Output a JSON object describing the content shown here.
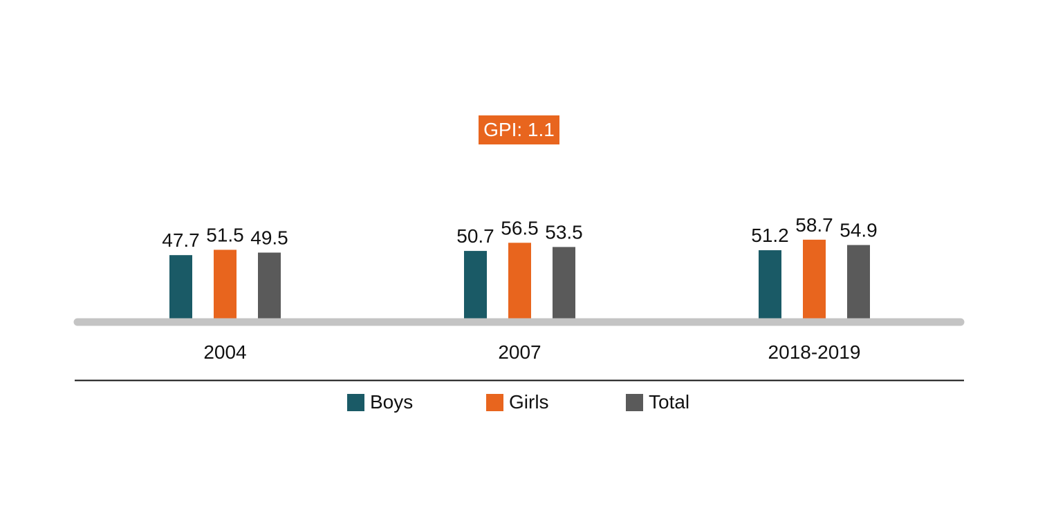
{
  "colors": {
    "boys": "#1a5a66",
    "girls": "#e8651e",
    "total": "#5a5a5a",
    "axis": "#c4c4c4",
    "divider": "#111111",
    "badge_bg": "#e8651e"
  },
  "annotation": {
    "gpi_text": "GPI: 1.1"
  },
  "legend": {
    "items": [
      {
        "label": "Boys",
        "color_key": "boys"
      },
      {
        "label": "Girls",
        "color_key": "girls"
      },
      {
        "label": "Total",
        "color_key": "total"
      }
    ]
  },
  "chart_data": {
    "type": "bar",
    "categories": [
      "2004",
      "2007",
      "2018-2019"
    ],
    "series": [
      {
        "name": "Boys",
        "values": [
          47.7,
          50.7,
          51.2
        ]
      },
      {
        "name": "Girls",
        "values": [
          51.5,
          56.5,
          58.7
        ]
      },
      {
        "name": "Total",
        "values": [
          49.5,
          53.5,
          54.9
        ]
      }
    ],
    "title": "",
    "xlabel": "",
    "ylabel": "",
    "grid": false,
    "legend_position": "bottom",
    "data_labels": true
  }
}
